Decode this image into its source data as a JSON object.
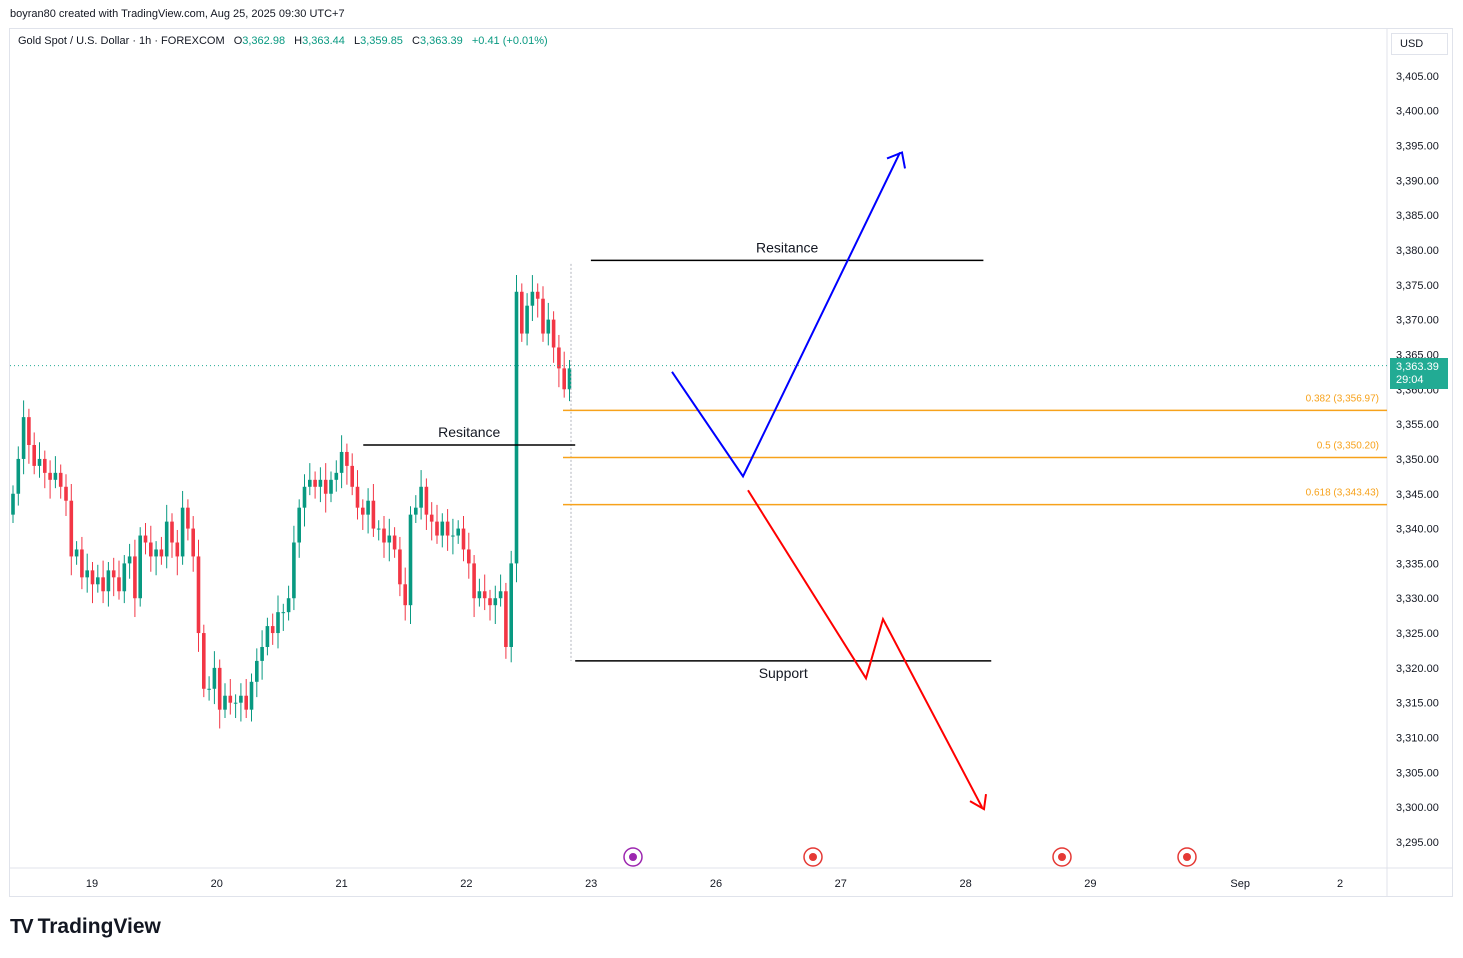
{
  "header": {
    "created_by": "boyran80 created with TradingView.com, Aug 25, 2025 09:30 UTC+7"
  },
  "legend": {
    "symbol": "Gold Spot / U.S. Dollar · 1h · FOREXCOM",
    "open_label": "O",
    "open": "3,362.98",
    "high_label": "H",
    "high": "3,363.44",
    "low_label": "L",
    "low": "3,359.85",
    "close_label": "C",
    "close": "3,363.39",
    "change": "+0.41 (+0.01%)"
  },
  "currency": "USD",
  "last_price": {
    "value": "3,363.39",
    "countdown": "29:04"
  },
  "brand": {
    "name": "TradingView"
  },
  "colors": {
    "up": "#089981",
    "down": "#f23645",
    "fib": "#f7a21b",
    "blue": "#0000ff",
    "red": "#ff0000",
    "tag": "#22ab94"
  },
  "chart_data": {
    "type": "candlestick",
    "y_axis": {
      "ticks": [
        3295,
        3300,
        3305,
        3310,
        3315,
        3320,
        3325,
        3330,
        3335,
        3340,
        3345,
        3350,
        3355,
        3360,
        3365,
        3370,
        3375,
        3380,
        3385,
        3390,
        3395,
        3400,
        3405
      ],
      "tick_labels": [
        "3,295.00",
        "3,300.00",
        "3,305.00",
        "3,310.00",
        "3,315.00",
        "3,320.00",
        "3,325.00",
        "3,330.00",
        "3,335.00",
        "3,340.00",
        "3,345.00",
        "3,350.00",
        "3,355.00",
        "3,360.00",
        "3,365.00",
        "3,370.00",
        "3,375.00",
        "3,380.00",
        "3,385.00",
        "3,390.00",
        "3,395.00",
        "3,400.00",
        "3,405.00"
      ],
      "range": [
        3291,
        3410
      ]
    },
    "x_axis": {
      "labels": [
        "19",
        "20",
        "21",
        "22",
        "23",
        "26",
        "27",
        "28",
        "29",
        "Sep",
        "2"
      ],
      "positions": [
        0,
        1,
        2,
        3,
        4,
        5,
        6,
        7,
        8,
        9.2,
        10
      ]
    },
    "candles_close": [
      3345,
      3350,
      3356,
      3352,
      3349,
      3350,
      3348,
      3347,
      3348,
      3346,
      3344,
      3336,
      3337,
      3333,
      3334,
      3332,
      3333,
      3331,
      3334,
      3333,
      3331,
      3335,
      3336,
      3330,
      3339,
      3338,
      3336,
      3337,
      3336,
      3341,
      3338,
      3336,
      3343,
      3340,
      3336,
      3325,
      3317,
      3317,
      3320,
      3314,
      3316,
      3315,
      3315,
      3316,
      3314,
      3318,
      3321,
      3323,
      3326,
      3325,
      3328,
      3328,
      3330,
      3338,
      3343,
      3346,
      3347,
      3346,
      3347,
      3345,
      3347,
      3348,
      3351,
      3349,
      3346,
      3343,
      3342,
      3344,
      3340,
      3340,
      3338,
      3339,
      3337,
      3332,
      3329,
      3342,
      3343,
      3346,
      3342,
      3341,
      3339,
      3341,
      3339,
      3339,
      3340,
      3337,
      3335,
      3330,
      3331,
      3330,
      3329,
      3330,
      3331,
      3323,
      3335,
      3374,
      3368,
      3372,
      3374,
      3373,
      3368,
      3370,
      3366,
      3363,
      3360,
      3363
    ],
    "price_line": 3363.39,
    "annotations": [
      {
        "type": "hline",
        "label": "Resitance",
        "y": 3352,
        "x0": 45,
        "x1": 72
      },
      {
        "type": "hline",
        "label": "Resitance",
        "y": 3378.5,
        "x0": 74,
        "x1": 124
      },
      {
        "type": "hline",
        "label": "Support",
        "y": 3321,
        "x0": 72,
        "x1": 125
      },
      {
        "type": "fib",
        "label": "0.382 (3,356.97)",
        "y": 3356.97
      },
      {
        "type": "fib",
        "label": "0.5 (3,350.20)",
        "y": 3350.2
      },
      {
        "type": "fib",
        "label": "0.618 (3,343.43)",
        "y": 3343.43
      }
    ],
    "scenario_paths": {
      "blue": [
        [
          3362.5,
          0
        ],
        [
          3347.5,
          1
        ],
        [
          3394,
          2
        ]
      ],
      "red": [
        [
          3345.5,
          0
        ],
        [
          3318.5,
          1
        ],
        [
          3327,
          2
        ],
        [
          3300,
          3
        ]
      ]
    }
  }
}
